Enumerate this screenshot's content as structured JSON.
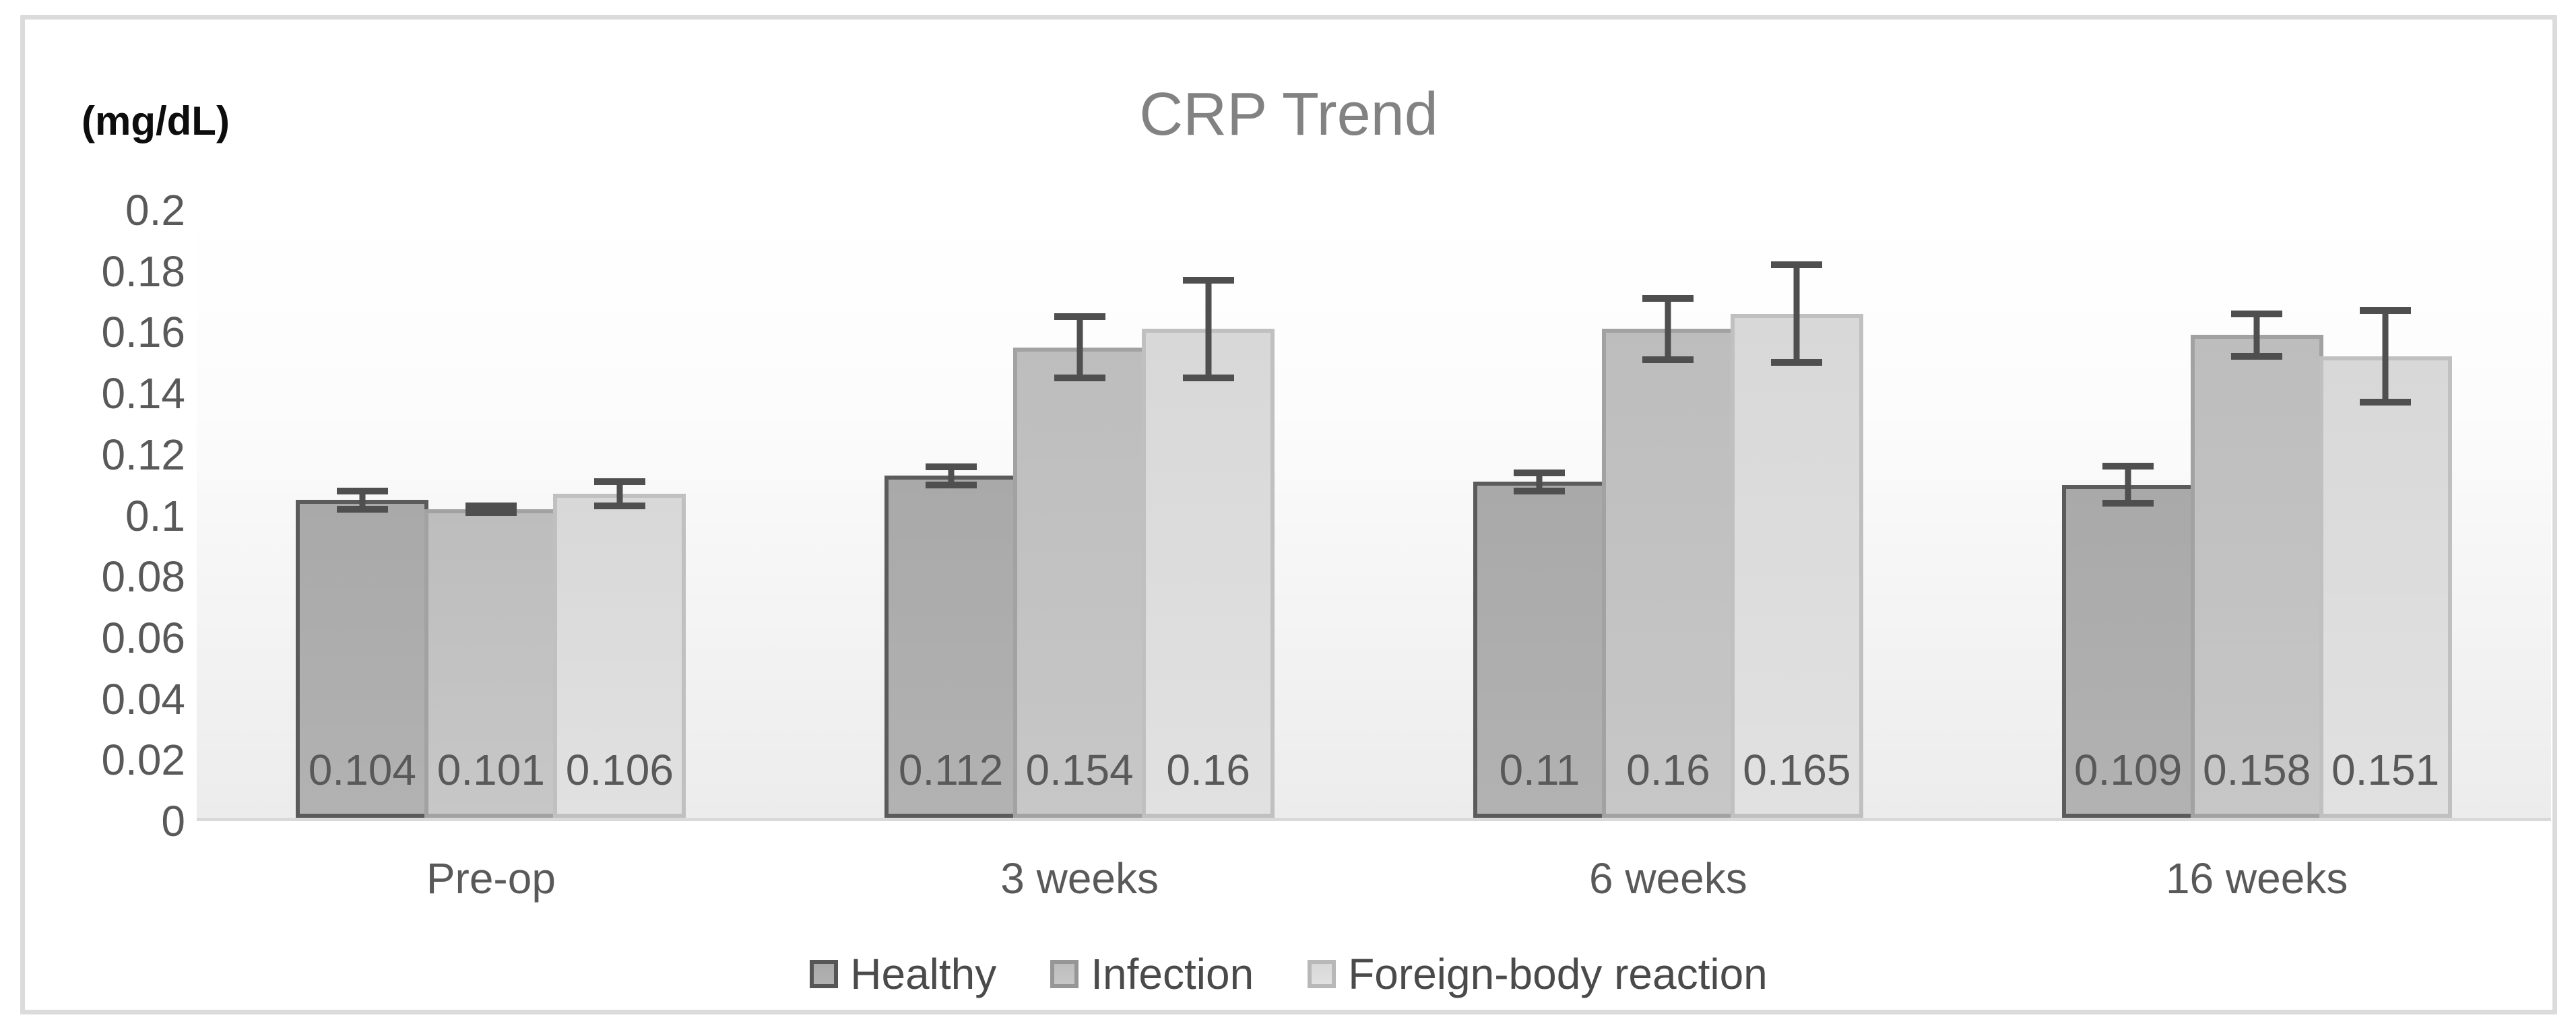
{
  "chart_data": {
    "type": "bar",
    "title": "CRP Trend",
    "ylabel": "(mg/dL)",
    "xlabel": "",
    "categories": [
      "Pre-op",
      "3 weeks",
      "6 weeks",
      "16 weeks"
    ],
    "series": [
      {
        "name": "Healthy",
        "values": [
          0.104,
          0.112,
          0.11,
          0.109
        ],
        "labels": [
          "0.104",
          "0.112",
          "0.11",
          "0.109"
        ],
        "errors": [
          0.003,
          0.003,
          0.003,
          0.006
        ],
        "fill_top": "#a9a9a9",
        "fill_bottom": "#b2b2b2",
        "border": "#5b5b5b",
        "legend_fill": "#a0a0a0",
        "legend_border": "#565656"
      },
      {
        "name": "Infection",
        "values": [
          0.101,
          0.154,
          0.16,
          0.158
        ],
        "labels": [
          "0.101",
          "0.154",
          "0.16",
          "0.158"
        ],
        "errors": [
          0.001,
          0.01,
          0.01,
          0.007
        ],
        "fill_top": "#bdbdbd",
        "fill_bottom": "#c7c7c7",
        "border": "#a2a2a2",
        "legend_fill": "#b8b8b8",
        "legend_border": "#969696"
      },
      {
        "name": "Foreign-body reaction",
        "values": [
          0.106,
          0.16,
          0.165,
          0.151
        ],
        "labels": [
          "0.106",
          "0.16",
          "0.165",
          "0.151"
        ],
        "errors": [
          0.004,
          0.016,
          0.016,
          0.015
        ],
        "fill_top": "#d8d8d8",
        "fill_bottom": "#e1e1e1",
        "border": "#c0c0c0",
        "legend_fill": "#d6d6d6",
        "legend_border": "#b8b8b8"
      }
    ],
    "ylim": [
      0,
      0.2
    ],
    "y_ticks": [
      {
        "label": "0.2",
        "value": 0.2
      },
      {
        "label": "0.18",
        "value": 0.18
      },
      {
        "label": "0.16",
        "value": 0.16
      },
      {
        "label": "0.14",
        "value": 0.14
      },
      {
        "label": "0.12",
        "value": 0.12
      },
      {
        "label": "0.1",
        "value": 0.1
      },
      {
        "label": "0.08",
        "value": 0.08
      },
      {
        "label": "0.06",
        "value": 0.06
      },
      {
        "label": "0.04",
        "value": 0.04
      },
      {
        "label": "0.02",
        "value": 0.02
      },
      {
        "label": "0",
        "value": 0
      }
    ],
    "grid": false,
    "legend_position": "bottom",
    "error_bar_color": "#4f4f4f",
    "axis_line_color": "#d9d9d9",
    "title_color": "#828282"
  }
}
